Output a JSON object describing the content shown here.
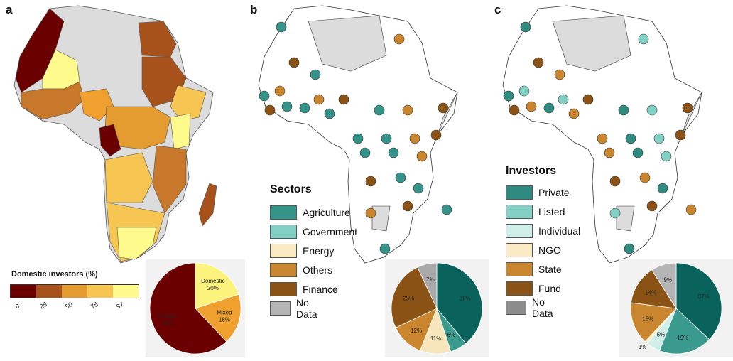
{
  "panel_a": {
    "label": "a",
    "legend_title": "Domestic investors (%)",
    "scale_colors": [
      "#6b0000",
      "#a8521b",
      "#e49b2f",
      "#f7c652",
      "#fefa8c"
    ],
    "scale_ticks": [
      "0",
      "25",
      "50",
      "75",
      "97"
    ],
    "pie": [
      {
        "label": "Foreign",
        "value": "62%",
        "pct": 62,
        "color": "#6b0000"
      },
      {
        "label": "Domestic",
        "value": "20%",
        "pct": 20,
        "color": "#fbf37c"
      },
      {
        "label": "Mixed",
        "value": "18%",
        "pct": 18,
        "color": "#f0a02e"
      }
    ]
  },
  "panel_b": {
    "label": "b",
    "legend_title": "Sectors",
    "legend": [
      {
        "label": "Agriculture",
        "color": "#35948a"
      },
      {
        "label": "Government",
        "color": "#82d0c3"
      },
      {
        "label": "Energy",
        "color": "#faebc5"
      },
      {
        "label": "Others",
        "color": "#c9862f"
      },
      {
        "label": "Finance",
        "color": "#8a5315"
      },
      {
        "label": "No Data",
        "color": "#b4b4b4"
      }
    ],
    "pie": [
      {
        "value": "39%",
        "pct": 39,
        "color": "#0a625c"
      },
      {
        "value": "6%",
        "pct": 6,
        "color": "#3a9a8e"
      },
      {
        "value": "11%",
        "pct": 11,
        "color": "#f7e6bb"
      },
      {
        "value": "12%",
        "pct": 12,
        "color": "#c9862f"
      },
      {
        "value": "25%",
        "pct": 25,
        "color": "#8a5315"
      },
      {
        "value": "7%",
        "pct": 7,
        "color": "#a9a9a9"
      }
    ]
  },
  "panel_c": {
    "label": "c",
    "legend_title": "Investors",
    "legend": [
      {
        "label": "Private",
        "color": "#2f8a80"
      },
      {
        "label": "Listed",
        "color": "#82d0c3"
      },
      {
        "label": "Individual",
        "color": "#cfeee8"
      },
      {
        "label": "NGO",
        "color": "#faebc5"
      },
      {
        "label": "State",
        "color": "#c9862f"
      },
      {
        "label": "Fund",
        "color": "#8a5315"
      },
      {
        "label": "No Data",
        "color": "#8c8c8c"
      }
    ],
    "pie": [
      {
        "value": "37%",
        "pct": 37,
        "color": "#0a625c"
      },
      {
        "value": "19%",
        "pct": 19,
        "color": "#3a9a8e"
      },
      {
        "value": "5%",
        "pct": 5,
        "color": "#cfeee8"
      },
      {
        "value": "1%",
        "pct": 1,
        "color": "#faebc5"
      },
      {
        "value": "15%",
        "pct": 15,
        "color": "#c9862f"
      },
      {
        "value": "14%",
        "pct": 14,
        "color": "#8a5315"
      },
      {
        "value": "9%",
        "pct": 9,
        "color": "#b4b4b4"
      }
    ]
  }
}
